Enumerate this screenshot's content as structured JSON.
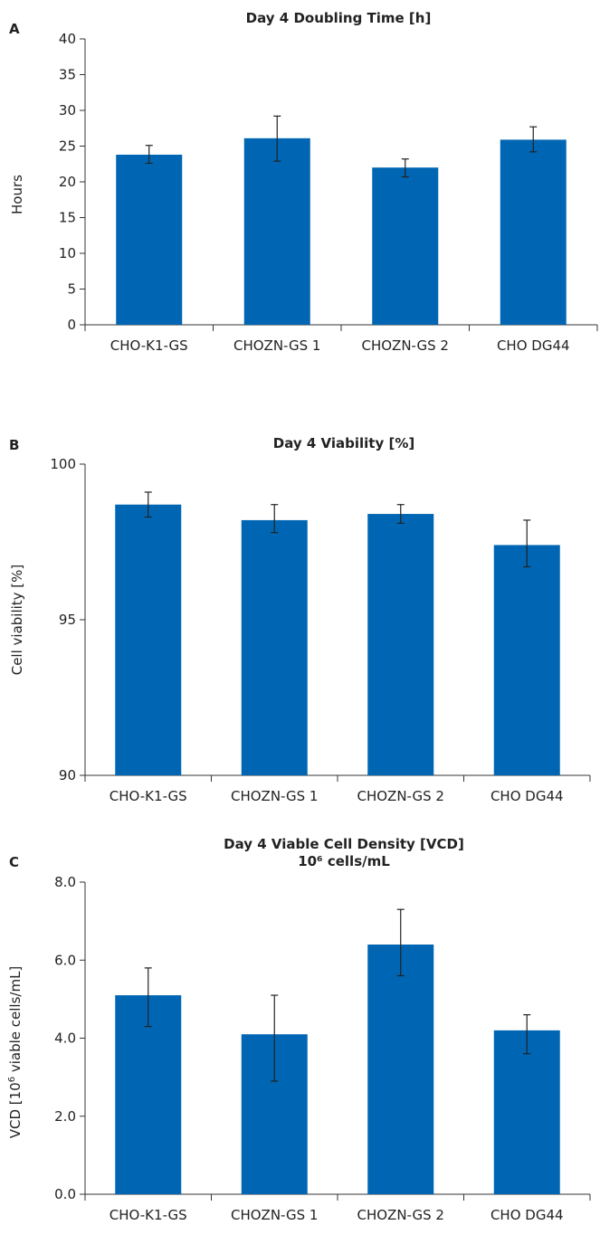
{
  "chart_data": [
    {
      "type": "bar",
      "panel": "A",
      "title": "Day 4 Doubling Time [h]",
      "title_line2": "",
      "ylabel": "Hours",
      "ylabel_sup": "",
      "ylabel_rest": "",
      "xlabel": "",
      "categories": [
        "CHO-K1-GS",
        "CHOZN-GS 1",
        "CHOZN-GS 2",
        "CHO DG44"
      ],
      "values": [
        23.8,
        26.1,
        22.0,
        25.9
      ],
      "error_low": [
        22.6,
        22.9,
        20.7,
        24.2
      ],
      "error_high": [
        25.1,
        29.2,
        23.2,
        27.7
      ],
      "ylim": [
        0,
        40
      ],
      "yticks": [
        "0",
        "5",
        "10",
        "15",
        "20",
        "25",
        "30",
        "35",
        "40"
      ],
      "ytick_values": [
        0,
        5,
        10,
        15,
        20,
        25,
        30,
        35,
        40
      ],
      "bar_color": "#0066b3",
      "grid": false,
      "legend": "none"
    },
    {
      "type": "bar",
      "panel": "B",
      "title": "Day 4 Viability [%]",
      "title_line2": "",
      "ylabel": "Cell viability [%]",
      "ylabel_sup": "",
      "ylabel_rest": "",
      "xlabel": "",
      "categories": [
        "CHO-K1-GS",
        "CHOZN-GS 1",
        "CHOZN-GS 2",
        "CHO DG44"
      ],
      "values": [
        98.7,
        98.2,
        98.4,
        97.4
      ],
      "error_low": [
        98.3,
        97.8,
        98.1,
        96.7
      ],
      "error_high": [
        99.1,
        98.7,
        98.7,
        98.2
      ],
      "ylim": [
        90,
        100
      ],
      "yticks": [
        "90",
        "95",
        "100"
      ],
      "ytick_values": [
        90,
        95,
        100
      ],
      "bar_color": "#0066b3",
      "grid": false,
      "legend": "none"
    },
    {
      "type": "bar",
      "panel": "C",
      "title": "Day 4 Viable Cell Density [VCD]",
      "title_line2": "10⁶ cells/mL",
      "ylabel": "VCD [10",
      "ylabel_sup": "6",
      "ylabel_rest": " viable cells/mL]",
      "xlabel": "",
      "categories": [
        "CHO-K1-GS",
        "CHOZN-GS 1",
        "CHOZN-GS 2",
        "CHO DG44"
      ],
      "values": [
        5.1,
        4.1,
        6.4,
        4.2
      ],
      "error_low": [
        4.3,
        2.9,
        5.6,
        3.6
      ],
      "error_high": [
        5.8,
        5.1,
        7.3,
        4.6
      ],
      "ylim": [
        0,
        8
      ],
      "yticks": [
        "0.0",
        "2.0",
        "4.0",
        "6.0",
        "8.0"
      ],
      "ytick_values": [
        0,
        2,
        4,
        6,
        8
      ],
      "bar_color": "#0066b3",
      "grid": false,
      "legend": "none"
    }
  ]
}
